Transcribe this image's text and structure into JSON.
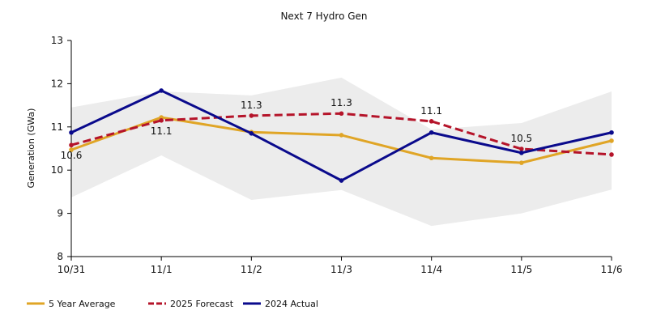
{
  "chart_data": {
    "type": "line",
    "title": "Next 7 Hydro Gen",
    "xlabel": "",
    "ylabel": "Generation (GWa)",
    "ylim": [
      8,
      13
    ],
    "yticks": [
      8,
      9,
      10,
      11,
      12,
      13
    ],
    "categories": [
      "10/31",
      "11/1",
      "11/2",
      "11/3",
      "11/4",
      "11/5",
      "11/6"
    ],
    "grid": false,
    "legend_position": "bottom-left",
    "band": {
      "color": "#ececec",
      "upper": [
        11.45,
        11.82,
        11.73,
        12.14,
        10.94,
        11.09,
        11.82
      ],
      "lower": [
        9.37,
        10.34,
        9.31,
        9.54,
        8.71,
        9.0,
        9.55
      ]
    },
    "series": [
      {
        "name": "5 Year Average",
        "color": "#e0a526",
        "dashed": false,
        "values": [
          10.47,
          11.22,
          10.88,
          10.81,
          10.28,
          10.17,
          10.68
        ]
      },
      {
        "name": "2025 Forecast",
        "color": "#b5142a",
        "dashed": true,
        "values": [
          10.58,
          11.15,
          11.26,
          11.31,
          11.13,
          10.49,
          10.36
        ],
        "data_labels": [
          "10.6",
          "11.1",
          "11.3",
          "11.3",
          "11.1",
          "10.5",
          ""
        ]
      },
      {
        "name": "2024 Actual",
        "color": "#0a0a8c",
        "dashed": false,
        "values": [
          10.87,
          11.84,
          10.85,
          9.76,
          10.87,
          10.4,
          10.87
        ]
      }
    ]
  }
}
